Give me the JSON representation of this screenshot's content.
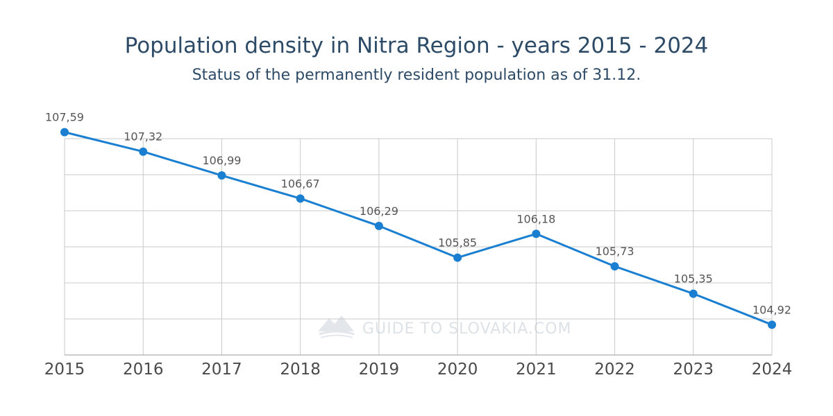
{
  "chart_data": {
    "type": "line",
    "title": "Population density in Nitra Region - years 2015 - 2024",
    "subtitle": "Status of the permanently resident population as of 31.12.",
    "xlabel": "",
    "ylabel": "",
    "categories": [
      "2015",
      "2016",
      "2017",
      "2018",
      "2019",
      "2020",
      "2021",
      "2022",
      "2023",
      "2024"
    ],
    "values": [
      107.59,
      107.32,
      106.99,
      106.67,
      106.29,
      105.85,
      106.18,
      105.73,
      105.35,
      104.92
    ],
    "labels": [
      "107,59",
      "107,32",
      "106,99",
      "106,67",
      "106,29",
      "105,85",
      "106,18",
      "105,73",
      "105,35",
      "104,92"
    ],
    "ylim": [
      104.5,
      107.5
    ],
    "grid": true,
    "legend": "none",
    "colors": {
      "line": "#1a7fd1",
      "marker": "#1a7fd1",
      "grid": "#c9c9c9"
    }
  },
  "watermark": "GUIDE TO SLOVAKIA.COM"
}
